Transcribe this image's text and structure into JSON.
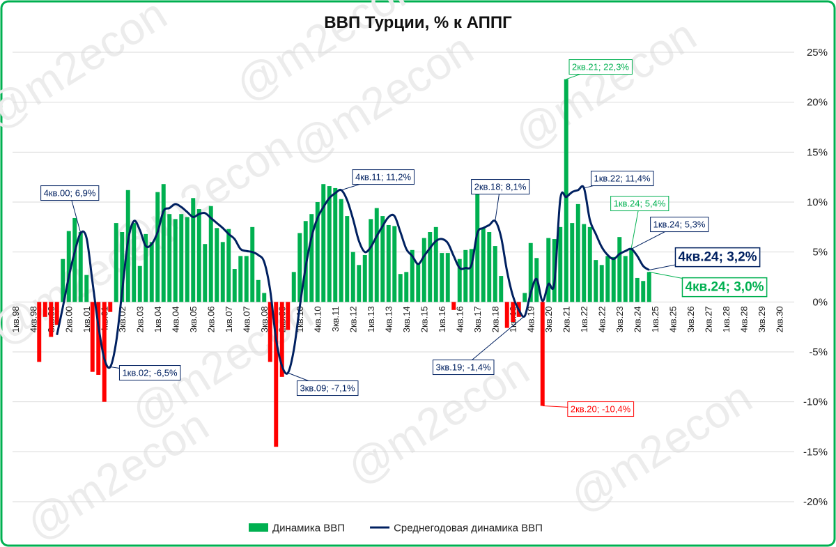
{
  "chart_data": {
    "type": "bar_line",
    "title": "ВВП Турции, % к АППГ",
    "watermark": "@m2econ",
    "categories": [
      "1кв.98",
      null,
      null,
      "4кв.98",
      null,
      null,
      "3кв.99",
      null,
      null,
      "2кв.00",
      null,
      null,
      "1кв.01",
      null,
      null,
      "4кв.01",
      null,
      null,
      "3кв.02",
      null,
      null,
      "2кв.03",
      null,
      null,
      "1кв.04",
      null,
      null,
      "4кв.04",
      null,
      null,
      "3кв.05",
      null,
      null,
      "2кв.06",
      null,
      null,
      "1кв.07",
      null,
      null,
      "4кв.07",
      null,
      null,
      "3кв.08",
      null,
      null,
      "2кв.09",
      null,
      null,
      "1кв.10",
      null,
      null,
      "4кв.10",
      null,
      null,
      "3кв.11",
      null,
      null,
      "2кв.12",
      null,
      null,
      "1кв.13",
      null,
      null,
      "4кв.13",
      null,
      null,
      "3кв.14",
      null,
      null,
      "2кв.15",
      null,
      null,
      "1кв.16",
      null,
      null,
      "4кв.16",
      null,
      null,
      "3кв.17",
      null,
      null,
      "2кв.18",
      null,
      null,
      "1кв.19",
      null,
      null,
      "4кв.19",
      null,
      null,
      "3кв.20",
      null,
      null,
      "2кв.21",
      null,
      null,
      "1кв.22",
      null,
      null,
      "4кв.22",
      null,
      null,
      "3кв.23",
      null,
      null,
      "2кв.24",
      null,
      null,
      "1кв.25",
      null,
      null,
      "4кв.25",
      null,
      null,
      "3кв.26",
      null,
      null,
      "2кв.27",
      null,
      null,
      "1кв.28",
      null,
      null,
      "4кв.28",
      null,
      null,
      "3кв.29",
      null,
      null,
      "2кв.30",
      null,
      null
    ],
    "series": [
      {
        "name": "Динамика ВВП",
        "type": "bar",
        "color": "#00b050",
        "negative_color": "#ff0000",
        "values": [
          null,
          null,
          null,
          null,
          -6.0,
          -1.5,
          -3.5,
          -2.3,
          4.3,
          7.1,
          8.4,
          7.0,
          2.7,
          -7.0,
          -7.3,
          -10.0,
          -1.0,
          7.9,
          7.0,
          11.2,
          7.9,
          3.6,
          6.8,
          6.0,
          11.0,
          11.8,
          8.8,
          8.3,
          8.8,
          8.5,
          10.4,
          9.3,
          5.8,
          9.6,
          7.4,
          6.0,
          7.3,
          3.3,
          4.6,
          4.6,
          7.5,
          2.2,
          0.9,
          -6.0,
          -14.5,
          -7.5,
          -2.8,
          3.0,
          6.9,
          8.1,
          8.8,
          10.0,
          11.8,
          11.6,
          11.4,
          10.3,
          8.6,
          5.0,
          3.7,
          4.7,
          8.3,
          9.4,
          8.6,
          7.7,
          7.6,
          2.8,
          3.0,
          5.2,
          3.8,
          6.4,
          7.0,
          7.5,
          4.9,
          4.9,
          -0.8,
          4.3,
          5.2,
          5.3,
          11.0,
          7.4,
          7.0,
          5.6,
          2.6,
          -2.6,
          -2.0,
          -1.5,
          0.9,
          5.9,
          4.4,
          -10.4,
          6.4,
          6.3,
          7.5,
          22.3,
          7.9,
          9.8,
          7.8,
          7.5,
          4.2,
          3.7,
          4.6,
          4.5,
          6.5,
          4.6,
          5.4,
          2.4,
          2.1,
          3.0,
          null,
          null,
          null,
          null,
          null,
          null,
          null,
          null,
          null,
          null,
          null,
          null,
          null,
          null,
          null,
          null,
          null,
          null,
          null,
          null,
          null,
          null,
          null,
          null
        ]
      },
      {
        "name": "Среднегодовая динамика ВВП",
        "type": "line",
        "color": "#002060",
        "values": [
          null,
          null,
          null,
          null,
          null,
          null,
          null,
          -3.3,
          -0.5,
          2.5,
          5.0,
          6.9,
          6.4,
          2.0,
          -2.4,
          -5.7,
          -6.5,
          -4.0,
          1.0,
          6.1,
          8.1,
          7.2,
          5.6,
          5.8,
          7.0,
          9.1,
          9.4,
          9.8,
          9.5,
          9.0,
          8.5,
          8.8,
          8.9,
          8.4,
          7.9,
          7.4,
          6.8,
          6.3,
          5.3,
          5.1,
          5.0,
          4.7,
          4.0,
          1.2,
          -3.7,
          -6.4,
          -7.1,
          -4.8,
          -0.5,
          3.5,
          6.5,
          8.4,
          9.5,
          10.4,
          10.9,
          11.2,
          10.2,
          8.3,
          6.1,
          5.0,
          5.5,
          6.6,
          7.6,
          8.5,
          8.6,
          7.0,
          5.3,
          4.6,
          3.8,
          4.6,
          5.4,
          6.1,
          6.3,
          5.9,
          4.6,
          3.4,
          3.4,
          3.7,
          6.9,
          7.4,
          7.7,
          8.1,
          6.5,
          3.1,
          0.6,
          -0.8,
          -1.4,
          0.9,
          2.3,
          0.1,
          1.8,
          1.9,
          10.3,
          10.5,
          11.0,
          11.2,
          11.4,
          8.2,
          6.8,
          5.5,
          4.7,
          4.3,
          4.8,
          5.1,
          5.3,
          4.6,
          3.6,
          3.2,
          null,
          null,
          null,
          null,
          null,
          null,
          null,
          null,
          null,
          null,
          null,
          null,
          null,
          null,
          null,
          null,
          null,
          null,
          null,
          null,
          null,
          null,
          null,
          null
        ]
      }
    ],
    "ylim": [
      -20,
      25
    ],
    "yticks": [
      {
        "value": -20,
        "label": "-20%"
      },
      {
        "value": -15,
        "label": "-15%"
      },
      {
        "value": -10,
        "label": "-10%"
      },
      {
        "value": -5,
        "label": "-5%"
      },
      {
        "value": 0,
        "label": "0%"
      },
      {
        "value": 5,
        "label": "5%"
      },
      {
        "value": 10,
        "label": "10%"
      },
      {
        "value": 15,
        "label": "15%"
      },
      {
        "value": 20,
        "label": "20%"
      },
      {
        "value": 25,
        "label": "25%"
      }
    ],
    "grid": true,
    "legend": "bottom",
    "annotations": [
      "4кв.00; 6,9%",
      "1кв.02; -6,5%",
      "3кв.09; -7,1%",
      "4кв.11; 11,2%",
      "2кв.18; 8,1%",
      "3кв.19; -1,4%",
      "2кв.20; -10,4%",
      "2кв.21; 22,3%",
      "1кв.22; 11,4%",
      "1кв.24; 5,4%",
      "1кв.24; 5,3%",
      "4кв.24; 3,2%",
      "4кв.24; 3,0%"
    ]
  }
}
